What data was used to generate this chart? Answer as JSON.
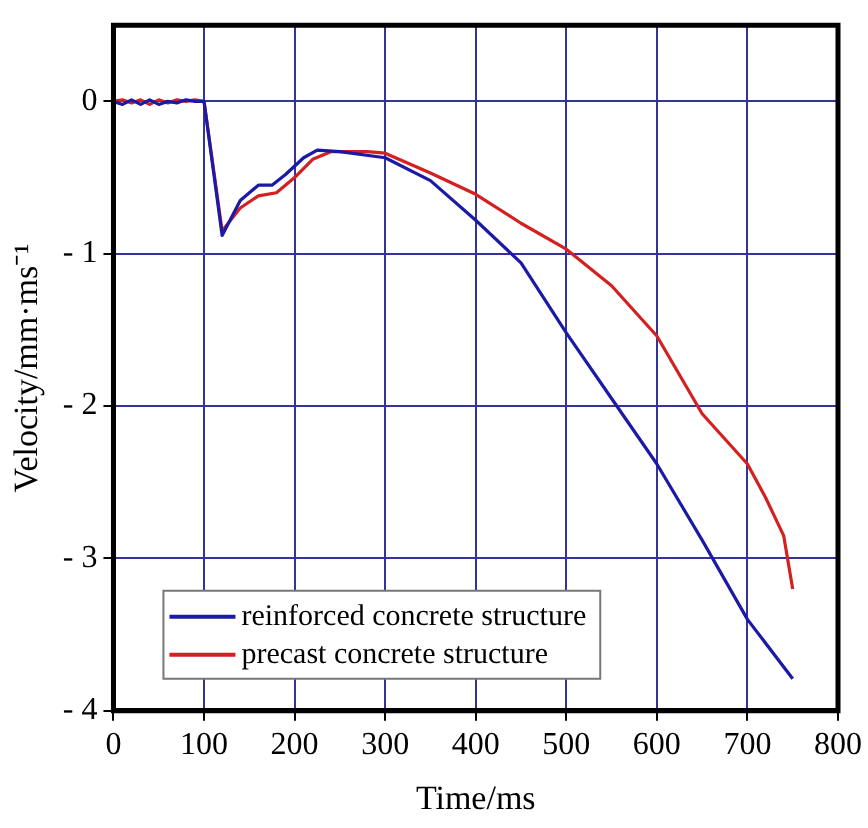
{
  "chart_data": {
    "type": "line",
    "xlabel": "Time/ms",
    "ylabel": "Velocity/mm·ms⁻¹",
    "xlim": [
      0,
      800
    ],
    "xticks": [
      0,
      100,
      200,
      300,
      400,
      500,
      600,
      700,
      800
    ],
    "ylim": [
      -4,
      0.5
    ],
    "yticks": [
      -4,
      -3,
      -2,
      -1,
      0
    ],
    "grid": true,
    "legend": "bottom left",
    "marker": "none",
    "line_style": "solid",
    "series": [
      {
        "name": "reinforced concrete structure",
        "color": "#1a1aa6",
        "x": [
          0,
          10,
          20,
          30,
          40,
          50,
          60,
          70,
          80,
          90,
          100,
          120,
          140,
          160,
          175,
          190,
          210,
          225,
          250,
          300,
          350,
          400,
          450,
          500,
          550,
          600,
          650,
          700,
          750
        ],
        "values": [
          0,
          -0.02,
          0.01,
          -0.02,
          0.01,
          -0.02,
          0,
          -0.01,
          0.01,
          0,
          0,
          -0.88,
          -0.65,
          -0.55,
          -0.55,
          -0.48,
          -0.37,
          -0.32,
          -0.33,
          -0.37,
          -0.52,
          -0.78,
          -1.06,
          -1.52,
          -1.95,
          -2.38,
          -2.88,
          -3.4,
          -3.79
        ]
      },
      {
        "name": "precast concrete structure",
        "color": "#d42020",
        "x": [
          0,
          10,
          20,
          30,
          40,
          50,
          60,
          70,
          80,
          90,
          100,
          120,
          140,
          160,
          180,
          200,
          220,
          240,
          280,
          300,
          350,
          400,
          450,
          500,
          550,
          600,
          650,
          700,
          720,
          740,
          750
        ],
        "values": [
          0,
          0.01,
          -0.01,
          0.01,
          -0.02,
          0.01,
          -0.01,
          0.01,
          0,
          0.01,
          0,
          -0.85,
          -0.7,
          -0.62,
          -0.6,
          -0.5,
          -0.38,
          -0.33,
          -0.33,
          -0.34,
          -0.47,
          -0.61,
          -0.8,
          -0.97,
          -1.21,
          -1.54,
          -2.05,
          -2.38,
          -2.6,
          -2.85,
          -3.2
        ]
      }
    ]
  }
}
